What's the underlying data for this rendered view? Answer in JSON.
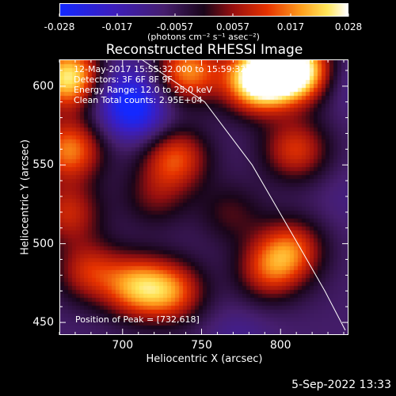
{
  "colorbar": {
    "tick_labels": [
      "-0.028",
      "-0.017",
      "-0.0057",
      "0.0057",
      "0.017",
      "0.028"
    ],
    "units": "(photons cm⁻² s⁻¹ asec⁻²)"
  },
  "title": "Reconstructed RHESSI Image",
  "info": {
    "time_range": "12-May-2017 15:55:32.000 to 15:59:32.000",
    "detectors": "Detectors: 3F 6F 8F 9F",
    "energy": "Energy Range: 12.0 to 25.0 keV",
    "method": "Clean    Total counts: 2.95E+04"
  },
  "peak": "Position of Peak = [732,618]",
  "timestamp": "5-Sep-2022 13:33",
  "chart_data": {
    "type": "heatmap",
    "title": "Reconstructed RHESSI Image",
    "xlabel": "Heliocentric X (arcsec)",
    "ylabel": "Heliocentric Y (arcsec)",
    "xlim": [
      660,
      843
    ],
    "ylim": [
      442,
      617
    ],
    "x_ticks": [
      700,
      750,
      800
    ],
    "y_ticks": [
      450,
      500,
      550,
      600
    ],
    "x_tick_labels": [
      "700",
      "750",
      "800"
    ],
    "y_tick_labels": [
      "450",
      "500",
      "550",
      "600"
    ],
    "colorbar_range": [
      -0.028,
      0.028
    ],
    "peak_position": [
      732,
      618
    ],
    "limb_arc": [
      [
        712,
        617
      ],
      [
        752,
        590
      ],
      [
        782,
        550
      ],
      [
        808,
        505
      ],
      [
        828,
        470
      ],
      [
        841,
        445
      ]
    ],
    "features": [
      {
        "x": 666,
        "y": 606,
        "value": 0.028
      },
      {
        "x": 666,
        "y": 560,
        "value": 0.018
      },
      {
        "x": 665,
        "y": 520,
        "value": 0.01
      },
      {
        "x": 695,
        "y": 598,
        "value": -0.017
      },
      {
        "x": 708,
        "y": 585,
        "value": -0.027
      },
      {
        "x": 721,
        "y": 612,
        "value": -0.01
      },
      {
        "x": 740,
        "y": 610,
        "value": 0.02
      },
      {
        "x": 758,
        "y": 598,
        "value": -0.008
      },
      {
        "x": 783,
        "y": 602,
        "value": 0.017
      },
      {
        "x": 792,
        "y": 610,
        "value": 0.02
      },
      {
        "x": 813,
        "y": 610,
        "value": 0.028
      },
      {
        "x": 836,
        "y": 605,
        "value": -0.015
      },
      {
        "x": 809,
        "y": 560,
        "value": 0.012
      },
      {
        "x": 733,
        "y": 555,
        "value": 0.014
      },
      {
        "x": 720,
        "y": 530,
        "value": 0.003
      },
      {
        "x": 768,
        "y": 520,
        "value": 0.002
      },
      {
        "x": 806,
        "y": 497,
        "value": 0.013
      },
      {
        "x": 792,
        "y": 483,
        "value": 0.01
      },
      {
        "x": 708,
        "y": 473,
        "value": 0.017
      },
      {
        "x": 731,
        "y": 470,
        "value": 0.014
      },
      {
        "x": 678,
        "y": 483,
        "value": 0.01
      },
      {
        "x": 825,
        "y": 466,
        "value": -0.007
      },
      {
        "x": 843,
        "y": 530,
        "value": -0.01
      },
      {
        "x": 773,
        "y": 440,
        "value": -0.012
      }
    ]
  }
}
